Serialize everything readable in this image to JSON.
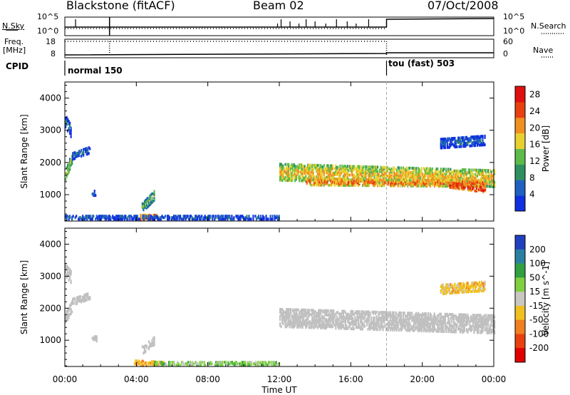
{
  "header": {
    "station": "Blackstone (fitACF)",
    "beam": "Beam 02",
    "date": "07/Oct/2008"
  },
  "sky_panel": {
    "left_label": "N.Sky",
    "right_label": "N.Search",
    "left_ticks": [
      "10^5",
      "10^0"
    ],
    "right_ticks": [
      "10^5",
      "10^0"
    ]
  },
  "freq_panel": {
    "left_label_1": "Freq.",
    "left_label_2": "[MHz]",
    "right_label": "Nave",
    "left_ticks": [
      "18",
      "8"
    ],
    "right_ticks": [
      "60",
      "0"
    ]
  },
  "cpid": {
    "label": "CPID",
    "segments": [
      "normal 150",
      "tou (fast) 503"
    ]
  },
  "colors": {
    "power_scale": [
      "#1030e0",
      "#2060c0",
      "#2e9060",
      "#5dbb4a",
      "#e8d030",
      "#f09020",
      "#e84010",
      "#e01010"
    ],
    "velocity_scale": [
      "#2040c0",
      "#2a80a0",
      "#30a040",
      "#80d040",
      "#c8c8c0",
      "#f0c020",
      "#f08020",
      "#e84010",
      "#e00000"
    ],
    "ground_scatter": "#c0c0c0"
  },
  "chart_data": [
    {
      "type": "heatmap",
      "panel": "power",
      "ylabel": "Slant Range [km]",
      "xlabel": "Time UT",
      "x_ticks": [
        "00:00",
        "04:00",
        "08:00",
        "12:00",
        "16:00",
        "20:00",
        "00:00"
      ],
      "x_range_hours": [
        0,
        24
      ],
      "y_ticks": [
        1000,
        2000,
        3000,
        4000
      ],
      "ylim": [
        180,
        4500
      ],
      "colorbar_label": "Power [dB]",
      "colorbar_ticks": [
        4,
        8,
        12,
        16,
        20,
        24,
        28
      ],
      "colorbar_range": [
        0,
        30
      ],
      "mode_change_hour": 18,
      "regions": [
        {
          "name": "early",
          "t": [
            0.0,
            0.4
          ],
          "range_center": [
            1600,
            2200
          ],
          "width_km": 350,
          "value": 14
        },
        {
          "name": "early-high",
          "t": [
            0.0,
            0.3
          ],
          "range_center": [
            3300,
            3000
          ],
          "width_km": 400,
          "value": 6
        },
        {
          "name": "early-tail",
          "t": [
            0.4,
            1.4
          ],
          "range_center": [
            2200,
            2400
          ],
          "width_km": 200,
          "value": 6
        },
        {
          "name": "patch-2h",
          "t": [
            1.5,
            1.8
          ],
          "range_center": [
            1050,
            1050
          ],
          "width_km": 150,
          "value": 8
        },
        {
          "name": "patch-4h",
          "t": [
            4.3,
            5.0
          ],
          "range_center": [
            600,
            1000
          ],
          "width_km": 300,
          "value": 12
        },
        {
          "name": "near-4h",
          "t": [
            4.2,
            5.2
          ],
          "range_center": [
            300,
            300
          ],
          "width_km": 150,
          "value": 24
        },
        {
          "name": "near-range",
          "t": [
            0.0,
            12.0
          ],
          "range_center": [
            300,
            300
          ],
          "width_km": 120,
          "value": 6
        },
        {
          "name": "main-band",
          "t": [
            12.0,
            24.0
          ],
          "range_center": [
            1700,
            1500
          ],
          "width_km": 500,
          "value": 18
        },
        {
          "name": "main-band-core",
          "t": [
            13.5,
            23.5
          ],
          "range_center": [
            1400,
            1350
          ],
          "width_km": 200,
          "value": 22
        },
        {
          "name": "late-red",
          "t": [
            21.5,
            23.5
          ],
          "range_center": [
            1300,
            1150
          ],
          "width_km": 150,
          "value": 27
        },
        {
          "name": "late-high",
          "t": [
            21.0,
            23.5
          ],
          "range_center": [
            2600,
            2700
          ],
          "width_km": 300,
          "value": 6
        }
      ]
    },
    {
      "type": "heatmap",
      "panel": "velocity",
      "ylabel": "Slant Range [km]",
      "xlabel": "Time UT",
      "x_ticks": [
        "00:00",
        "04:00",
        "08:00",
        "12:00",
        "16:00",
        "20:00",
        "00:00"
      ],
      "x_range_hours": [
        0,
        24
      ],
      "y_ticks": [
        1000,
        2000,
        3000,
        4000
      ],
      "ylim": [
        180,
        4500
      ],
      "colorbar_label": "Velocity [m s^-1]",
      "colorbar_ticks": [
        "200",
        "100",
        "50",
        "15",
        "-15",
        "-50",
        "-100",
        "-200"
      ],
      "mode_change_hour": 18,
      "regions": [
        {
          "name": "early-gs",
          "t": [
            0.0,
            0.4
          ],
          "range_center": [
            1700,
            2100
          ],
          "width_km": 350,
          "value": "gs"
        },
        {
          "name": "early-high-gs",
          "t": [
            0.0,
            0.3
          ],
          "range_center": [
            3200,
            3000
          ],
          "width_km": 400,
          "value": "gs"
        },
        {
          "name": "early-tail-gs",
          "t": [
            0.4,
            1.4
          ],
          "range_center": [
            2200,
            2400
          ],
          "width_km": 200,
          "value": "gs"
        },
        {
          "name": "patch-2h-gs",
          "t": [
            1.5,
            1.8
          ],
          "range_center": [
            1050,
            1050
          ],
          "width_km": 150,
          "value": "gs"
        },
        {
          "name": "patch-4h-gs",
          "t": [
            4.3,
            5.0
          ],
          "range_center": [
            700,
            1000
          ],
          "width_km": 250,
          "value": "gs"
        },
        {
          "name": "near-4h",
          "t": [
            3.8,
            5.5
          ],
          "range_center": [
            300,
            250
          ],
          "width_km": 150,
          "value": -70
        },
        {
          "name": "near-range",
          "t": [
            5.0,
            12.0
          ],
          "range_center": [
            280,
            280
          ],
          "width_km": 120,
          "value": 15
        },
        {
          "name": "main-band-gs",
          "t": [
            12.0,
            24.0
          ],
          "range_center": [
            1700,
            1500
          ],
          "width_km": 550,
          "value": "gs"
        },
        {
          "name": "late-high",
          "t": [
            21.0,
            23.5
          ],
          "range_center": [
            2600,
            2700
          ],
          "width_km": 300,
          "value": -50
        }
      ]
    }
  ]
}
